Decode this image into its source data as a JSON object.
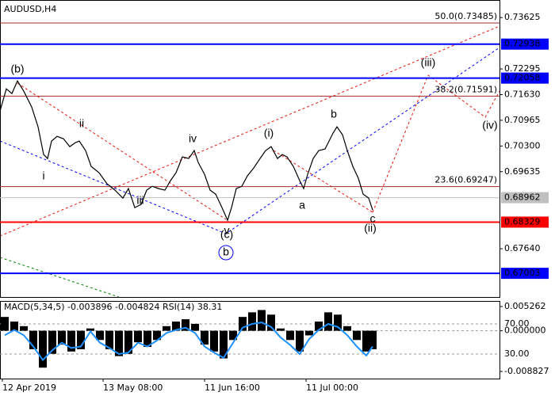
{
  "chart_data": [
    {
      "type": "line",
      "title": "AUDUSD,H4",
      "color": "#000000",
      "x": [
        0,
        8,
        15,
        22,
        30,
        40,
        48,
        55,
        60,
        65,
        72,
        80,
        88,
        95,
        100,
        108,
        115,
        125,
        135,
        145,
        155,
        162,
        170,
        178,
        185,
        192,
        200,
        208,
        215,
        222,
        230,
        238,
        245,
        250,
        258,
        265,
        272,
        280,
        287,
        292,
        298,
        305,
        312,
        320,
        328,
        335,
        342,
        350,
        356,
        362,
        370,
        378,
        383,
        388,
        395,
        402,
        410,
        415,
        420,
        425,
        432,
        438,
        445,
        452,
        458,
        465,
        470
      ],
      "values": [
        0.71206,
        0.7178,
        0.71657,
        0.71985,
        0.71718,
        0.71308,
        0.70796,
        0.70079,
        0.69976,
        0.70427,
        0.7055,
        0.70488,
        0.70283,
        0.70386,
        0.70427,
        0.70181,
        0.69771,
        0.69607,
        0.6932,
        0.69156,
        0.68951,
        0.69197,
        0.68705,
        0.68787,
        0.69156,
        0.69258,
        0.69197,
        0.69156,
        0.69402,
        0.69607,
        0.70017,
        0.69976,
        0.70181,
        0.69873,
        0.69566,
        0.69156,
        0.69053,
        0.68705,
        0.68377,
        0.68705,
        0.69197,
        0.69258,
        0.69525,
        0.6973,
        0.69976,
        0.70181,
        0.70283,
        0.69976,
        0.70079,
        0.70017,
        0.69771,
        0.69402,
        0.69197,
        0.69566,
        0.69976,
        0.70181,
        0.70222,
        0.70427,
        0.70632,
        0.70796,
        0.70591,
        0.70181,
        0.69771,
        0.69463,
        0.69053,
        0.68951,
        0.68643
      ],
      "xlim": [
        0,
        630
      ],
      "ylim": [
        0.6639,
        0.7408
      ],
      "xticks": [
        {
          "value": 3,
          "label": "12 Apr 2019"
        },
        {
          "value": 130,
          "label": "13 May 08:00"
        },
        {
          "value": 258,
          "label": "11 Jun 16:00"
        },
        {
          "value": 386,
          "label": "11 Jul 00:00"
        }
      ],
      "yticks": [
        0.73625,
        0.72295,
        {
          "value": 0.7163,
          "label": "0.71630"
        },
        0.70965,
        {
          "value": 0.703,
          "label": "0.70300"
        },
        0.69635,
        {
          "value": 0.6764,
          "label": "0.67640"
        }
      ],
      "levels": [
        {
          "value": 0.72938,
          "color": "#0000ff"
        },
        {
          "value": 0.72058,
          "color": "#0000ff"
        },
        {
          "value": 0.68329,
          "color": "#ff0000"
        },
        {
          "value": 0.67003,
          "color": "#0000ff"
        }
      ],
      "current_price": {
        "value": 0.68962,
        "color": "#c0c0c0"
      },
      "fibo": [
        {
          "value": 0.73485,
          "label": "50.0(0.73485)"
        },
        {
          "value": 0.71591,
          "label": "38.2(0.71591)"
        },
        {
          "value": 0.69247,
          "label": "23.6(0.69247)"
        }
      ],
      "annotations": [
        {
          "text": "(b)",
          "color": "#e8140a"
        },
        {
          "text": "ii",
          "color": "#808080"
        },
        {
          "text": "i",
          "color": "#808080"
        },
        {
          "text": "iii",
          "color": "#808080"
        },
        {
          "text": "iv",
          "color": "#808080"
        },
        {
          "text": "v",
          "color": "#808080"
        },
        {
          "text": "(c)",
          "color": "#e8140a"
        },
        {
          "text": "b",
          "color": "#0000ff",
          "circled": true
        },
        {
          "text": "(i)",
          "color": "#e8140a"
        },
        {
          "text": "b",
          "color": "#808080"
        },
        {
          "text": "a",
          "color": "#808080"
        },
        {
          "text": "c",
          "color": "#808080"
        },
        {
          "text": "(ii)",
          "color": "#e8140a"
        },
        {
          "text": "(iii)",
          "color": "#e8140a"
        },
        {
          "text": "(iv)",
          "color": "#e8140a"
        }
      ]
    },
    {
      "type": "bar",
      "title": "MACD(5,34,5) -0.003896 -0.004824 RSI(14) 38.31",
      "color": "#000000",
      "x": [
        6,
        18,
        30,
        42,
        54,
        66,
        78,
        90,
        102,
        114,
        126,
        138,
        150,
        162,
        174,
        186,
        198,
        210,
        222,
        234,
        246,
        258,
        270,
        282,
        294,
        306,
        318,
        330,
        342,
        354,
        366,
        378,
        390,
        402,
        414,
        426,
        438,
        450,
        462,
        470
      ],
      "values": [
        0.003,
        0.002,
        0.001,
        -0.004,
        -0.008,
        -0.005,
        -0.003,
        -0.0045,
        -0.004,
        0.0005,
        -0.002,
        -0.004,
        -0.0055,
        -0.005,
        -0.0025,
        -0.0035,
        -0.002,
        0.001,
        0.002,
        0.0025,
        0.0015,
        -0.003,
        -0.0045,
        -0.006,
        -0.002,
        0.003,
        0.004,
        0.0045,
        0.0035,
        0.0005,
        -0.002,
        -0.0045,
        -0.001,
        0.002,
        0.004,
        0.0035,
        0.001,
        -0.002,
        -0.0045,
        -0.004
      ],
      "rsi_values": [
        55,
        62,
        55,
        40,
        22,
        35,
        45,
        38,
        40,
        60,
        45,
        38,
        30,
        32,
        45,
        40,
        48,
        58,
        62,
        65,
        58,
        40,
        32,
        25,
        45,
        65,
        70,
        72,
        66,
        52,
        42,
        30,
        50,
        62,
        70,
        66,
        55,
        40,
        28,
        40
      ],
      "rsi_color": "#1e90ff",
      "xlim": [
        0,
        630
      ],
      "ylim": [
        -0.010373,
        0.006465
      ],
      "yticks": [
        0.005262,
        {
          "value": 0,
          "label": "0.000000"
        },
        -0.008827
      ],
      "y2lim": [
        -2.6,
        100.5
      ],
      "y2ticks": [
        {
          "value": 70,
          "label": "70.00"
        },
        {
          "value": 30,
          "label": "30.00"
        }
      ]
    }
  ]
}
